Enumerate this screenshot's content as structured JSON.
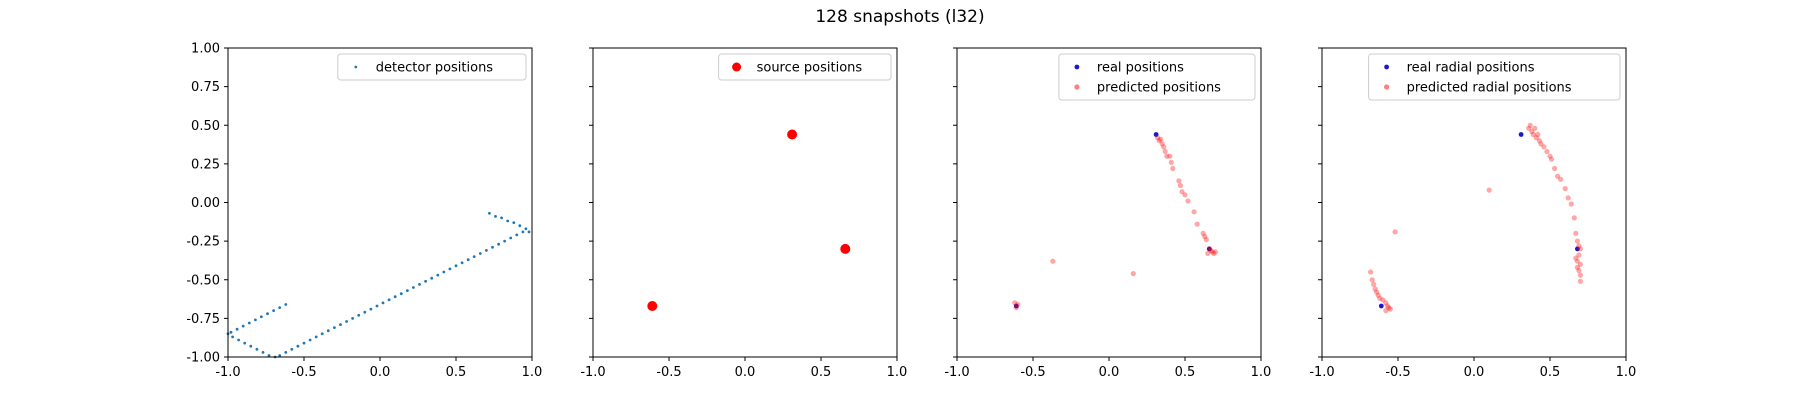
{
  "figure": {
    "title": "128 snapshots (l32)"
  },
  "chart_data": [
    {
      "type": "scatter",
      "xlim": [
        -1.0,
        1.0
      ],
      "ylim": [
        -1.0,
        1.0
      ],
      "xticks": [
        "-1.0",
        "-0.5",
        "0.0",
        "0.5",
        "1.0"
      ],
      "yticks": [
        "-1.00",
        "-0.75",
        "-0.50",
        "-0.25",
        "0.00",
        "0.25",
        "0.50",
        "0.75",
        "1.00"
      ],
      "show_y_ticklabels": true,
      "legend_position": "top-right",
      "series": [
        {
          "name": "detector positions",
          "color": "#1f77b4",
          "marker_size": 1.4,
          "opacity": 1,
          "points": [
            [
              -0.62,
              -0.66
            ],
            [
              -0.66,
              -0.68
            ],
            [
              -0.7,
              -0.7
            ],
            [
              -0.74,
              -0.72
            ],
            [
              -0.78,
              -0.74
            ],
            [
              -0.82,
              -0.76
            ],
            [
              -0.86,
              -0.78
            ],
            [
              -0.9,
              -0.8
            ],
            [
              -0.94,
              -0.82
            ],
            [
              -0.98,
              -0.84
            ],
            [
              -1.0,
              -0.85
            ],
            [
              -0.97,
              -0.87
            ],
            [
              -0.93,
              -0.89
            ],
            [
              -0.89,
              -0.91
            ],
            [
              -0.85,
              -0.93
            ],
            [
              -0.81,
              -0.95
            ],
            [
              -0.77,
              -0.97
            ],
            [
              -0.73,
              -0.99
            ],
            [
              -0.69,
              -1.0
            ],
            [
              -0.66,
              -0.99
            ],
            [
              -0.62,
              -0.97
            ],
            [
              -0.58,
              -0.95
            ],
            [
              -0.54,
              -0.93
            ],
            [
              -0.5,
              -0.91
            ],
            [
              -0.46,
              -0.89
            ],
            [
              -0.42,
              -0.87
            ],
            [
              -0.38,
              -0.85
            ],
            [
              -0.34,
              -0.83
            ],
            [
              -0.3,
              -0.81
            ],
            [
              -0.26,
              -0.79
            ],
            [
              -0.22,
              -0.77
            ],
            [
              -0.18,
              -0.75
            ],
            [
              -0.14,
              -0.73
            ],
            [
              -0.1,
              -0.71
            ],
            [
              -0.06,
              -0.69
            ],
            [
              -0.02,
              -0.67
            ],
            [
              0.02,
              -0.65
            ],
            [
              0.06,
              -0.63
            ],
            [
              0.1,
              -0.61
            ],
            [
              0.14,
              -0.59
            ],
            [
              0.18,
              -0.57
            ],
            [
              0.22,
              -0.55
            ],
            [
              0.26,
              -0.53
            ],
            [
              0.3,
              -0.51
            ],
            [
              0.34,
              -0.49
            ],
            [
              0.38,
              -0.47
            ],
            [
              0.42,
              -0.45
            ],
            [
              0.46,
              -0.43
            ],
            [
              0.5,
              -0.41
            ],
            [
              0.54,
              -0.39
            ],
            [
              0.58,
              -0.37
            ],
            [
              0.62,
              -0.35
            ],
            [
              0.66,
              -0.33
            ],
            [
              0.7,
              -0.31
            ],
            [
              0.74,
              -0.29
            ],
            [
              0.78,
              -0.27
            ],
            [
              0.82,
              -0.25
            ],
            [
              0.86,
              -0.23
            ],
            [
              0.9,
              -0.21
            ],
            [
              0.94,
              -0.19
            ],
            [
              0.98,
              -0.19
            ],
            [
              0.96,
              -0.17
            ],
            [
              0.92,
              -0.15
            ],
            [
              0.88,
              -0.13
            ],
            [
              0.84,
              -0.12
            ],
            [
              0.8,
              -0.1
            ],
            [
              0.76,
              -0.09
            ],
            [
              0.72,
              -0.07
            ]
          ]
        }
      ]
    },
    {
      "type": "scatter",
      "xlim": [
        -1.0,
        1.0
      ],
      "ylim": [
        -1.0,
        1.0
      ],
      "xticks": [
        "-1.0",
        "-0.5",
        "0.0",
        "0.5",
        "1.0"
      ],
      "yticks": [],
      "show_y_ticklabels": false,
      "legend_position": "top-right",
      "series": [
        {
          "name": "source positions",
          "color": "#ff0000",
          "marker_size": 5,
          "opacity": 1,
          "points": [
            [
              0.31,
              0.44
            ],
            [
              0.66,
              -0.3
            ],
            [
              -0.61,
              -0.67
            ]
          ]
        }
      ]
    },
    {
      "type": "scatter",
      "xlim": [
        -1.0,
        1.0
      ],
      "ylim": [
        -1.0,
        1.0
      ],
      "xticks": [
        "-1.0",
        "-0.5",
        "0.0",
        "0.5",
        "1.0"
      ],
      "yticks": [],
      "show_y_ticklabels": false,
      "legend_position": "top-right",
      "series": [
        {
          "name": "real positions",
          "color": "#0000cc",
          "marker_size": 2.4,
          "opacity": 0.9,
          "points": [
            [
              0.31,
              0.44
            ],
            [
              0.66,
              -0.3
            ],
            [
              -0.61,
              -0.67
            ]
          ]
        },
        {
          "name": "predicted positions",
          "color": "#ff0000",
          "marker_size": 2.6,
          "opacity": 0.35,
          "points": [
            [
              0.32,
              0.42
            ],
            [
              0.33,
              0.4
            ],
            [
              0.34,
              0.41
            ],
            [
              0.35,
              0.38
            ],
            [
              0.36,
              0.36
            ],
            [
              0.37,
              0.33
            ],
            [
              0.38,
              0.3
            ],
            [
              0.4,
              0.3
            ],
            [
              0.41,
              0.26
            ],
            [
              0.42,
              0.22
            ],
            [
              0.46,
              0.14
            ],
            [
              0.47,
              0.11
            ],
            [
              0.48,
              0.07
            ],
            [
              0.5,
              0.05
            ],
            [
              0.52,
              0.01
            ],
            [
              0.56,
              -0.06
            ],
            [
              0.58,
              -0.14
            ],
            [
              0.62,
              -0.2
            ],
            [
              0.63,
              -0.22
            ],
            [
              0.64,
              -0.24
            ],
            [
              0.66,
              -0.3
            ],
            [
              0.67,
              -0.31
            ],
            [
              0.68,
              -0.32
            ],
            [
              0.69,
              -0.33
            ],
            [
              0.7,
              -0.32
            ],
            [
              0.65,
              -0.33
            ],
            [
              -0.62,
              -0.65
            ],
            [
              -0.6,
              -0.66
            ],
            [
              -0.61,
              -0.68
            ],
            [
              -0.37,
              -0.38
            ],
            [
              0.16,
              -0.46
            ]
          ]
        }
      ]
    },
    {
      "type": "scatter",
      "xlim": [
        -1.0,
        1.0
      ],
      "ylim": [
        -1.0,
        1.0
      ],
      "xticks": [
        "-1.0",
        "-0.5",
        "0.0",
        "0.5",
        "1.0"
      ],
      "yticks": [],
      "show_y_ticklabels": false,
      "legend_position": "top-right",
      "series": [
        {
          "name": "real radial positions",
          "color": "#0000cc",
          "marker_size": 2.4,
          "opacity": 0.9,
          "points": [
            [
              0.31,
              0.44
            ],
            [
              0.68,
              -0.3
            ],
            [
              -0.61,
              -0.67
            ]
          ]
        },
        {
          "name": "predicted radial positions",
          "color": "#ff0000",
          "marker_size": 2.6,
          "opacity": 0.35,
          "points": [
            [
              0.36,
              0.48
            ],
            [
              0.37,
              0.5
            ],
            [
              0.38,
              0.46
            ],
            [
              0.39,
              0.44
            ],
            [
              0.4,
              0.48
            ],
            [
              0.41,
              0.42
            ],
            [
              0.42,
              0.44
            ],
            [
              0.43,
              0.4
            ],
            [
              0.44,
              0.38
            ],
            [
              0.46,
              0.36
            ],
            [
              0.48,
              0.33
            ],
            [
              0.5,
              0.3
            ],
            [
              0.51,
              0.28
            ],
            [
              0.53,
              0.22
            ],
            [
              0.55,
              0.17
            ],
            [
              0.57,
              0.15
            ],
            [
              0.6,
              0.09
            ],
            [
              0.62,
              0.03
            ],
            [
              0.64,
              -0.01
            ],
            [
              0.66,
              -0.1
            ],
            [
              0.67,
              -0.2
            ],
            [
              0.68,
              -0.25
            ],
            [
              0.69,
              -0.28
            ],
            [
              0.7,
              -0.3
            ],
            [
              0.69,
              -0.34
            ],
            [
              0.68,
              -0.38
            ],
            [
              0.7,
              -0.4
            ],
            [
              0.69,
              -0.44
            ],
            [
              0.7,
              -0.47
            ],
            [
              0.7,
              -0.51
            ],
            [
              0.68,
              -0.42
            ],
            [
              0.67,
              -0.36
            ],
            [
              -0.68,
              -0.45
            ],
            [
              -0.67,
              -0.5
            ],
            [
              -0.66,
              -0.53
            ],
            [
              -0.65,
              -0.56
            ],
            [
              -0.64,
              -0.58
            ],
            [
              -0.63,
              -0.6
            ],
            [
              -0.62,
              -0.62
            ],
            [
              -0.6,
              -0.63
            ],
            [
              -0.58,
              -0.65
            ],
            [
              -0.57,
              -0.67
            ],
            [
              -0.58,
              -0.7
            ],
            [
              -0.56,
              -0.68
            ],
            [
              -0.55,
              -0.69
            ],
            [
              -0.52,
              -0.19
            ],
            [
              0.1,
              0.08
            ]
          ]
        }
      ]
    }
  ]
}
